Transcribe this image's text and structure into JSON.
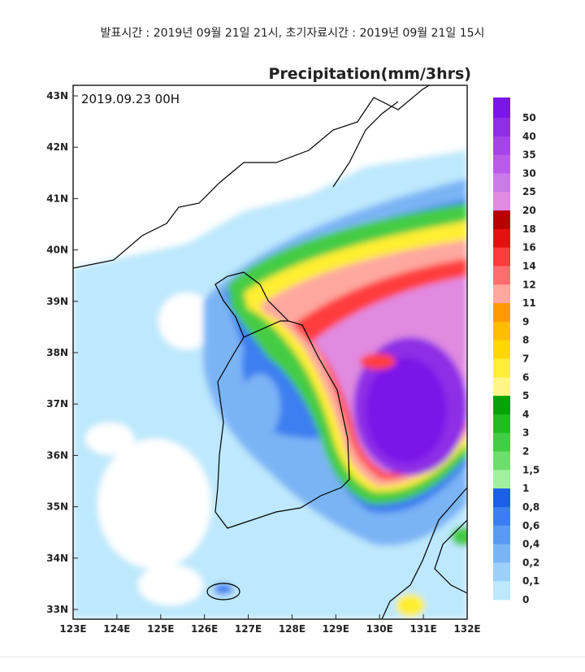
{
  "header": {
    "title": "발표시간 : 2019년 09월 21일 21시, 초기자료시간 : 2019년 09월 21일 15시"
  },
  "map": {
    "title": "Precipitation(mm/3hrs)",
    "timestamp": "2019.09.23 00H",
    "lat_labels": [
      "43N",
      "42N",
      "41N",
      "40N",
      "39N",
      "38N",
      "37N",
      "36N",
      "35N",
      "34N",
      "33N"
    ],
    "lon_labels": [
      "123E",
      "124E",
      "125E",
      "126E",
      "127E",
      "128E",
      "129E",
      "130E",
      "131E",
      "132E"
    ]
  },
  "legend": {
    "labels": [
      "50",
      "40",
      "35",
      "30",
      "25",
      "20",
      "18",
      "16",
      "14",
      "12",
      "11",
      "9",
      "8",
      "7",
      "6",
      "5",
      "4",
      "3",
      "2",
      "1,5",
      "1",
      "0,8",
      "0,6",
      "0,4",
      "0,2",
      "0,1",
      "0"
    ],
    "colors": [
      "#7a16e8",
      "#8e2ee6",
      "#a445e6",
      "#b85ce8",
      "#c97be6",
      "#e08ae0",
      "#b80000",
      "#e61010",
      "#ff3c3c",
      "#ff6e6e",
      "#ffa8a0",
      "#ff9a00",
      "#ffbe00",
      "#ffd800",
      "#ffee33",
      "#fff58a",
      "#0aa00a",
      "#22bb22",
      "#44cc44",
      "#6edd6e",
      "#a0f0a0",
      "#1a60e6",
      "#3c7ef0",
      "#5a9af0",
      "#7ab4f5",
      "#9cd0fa",
      "#bde8fd"
    ]
  }
}
